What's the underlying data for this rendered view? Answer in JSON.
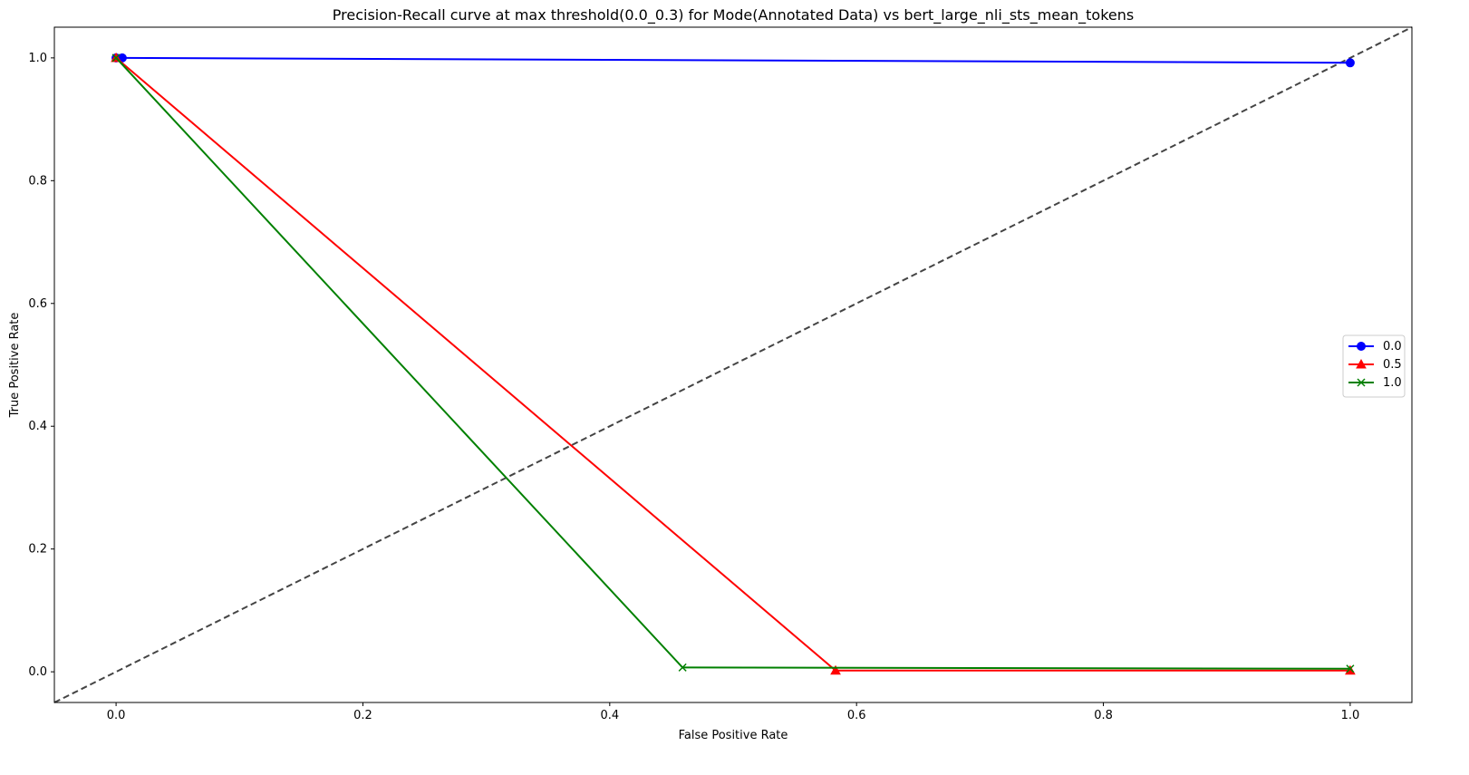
{
  "chart_data": {
    "type": "line",
    "title": "Precision-Recall curve at max threshold(0.0_0.3) for Mode(Annotated Data) vs bert_large_nli_sts_mean_tokens",
    "xlabel": "False Positive Rate",
    "ylabel": "True Positive Rate",
    "xlim": [
      -0.05,
      1.05
    ],
    "ylim": [
      -0.05,
      1.05
    ],
    "xticks": [
      "0.0",
      "0.2",
      "0.4",
      "0.6",
      "0.8",
      "1.0"
    ],
    "yticks": [
      "0.0",
      "0.2",
      "0.4",
      "0.6",
      "0.8",
      "1.0"
    ],
    "grid": false,
    "legend_position": "center-right",
    "series": [
      {
        "name": "0.0",
        "color": "#0000ff",
        "marker": "circle",
        "x": [
          0.0,
          0.005,
          1.0
        ],
        "y": [
          1.0,
          1.0,
          0.992
        ]
      },
      {
        "name": "0.5",
        "color": "#ff0000",
        "marker": "triangle",
        "x": [
          0.0,
          0.583,
          1.0
        ],
        "y": [
          1.0,
          0.002,
          0.002
        ]
      },
      {
        "name": "1.0",
        "color": "#008000",
        "marker": "x",
        "x": [
          0.0,
          0.459,
          1.0
        ],
        "y": [
          1.0,
          0.007,
          0.005
        ]
      }
    ],
    "reference_line": {
      "color": "#444444",
      "style": "dashed",
      "x": [
        -0.05,
        1.05
      ],
      "y": [
        -0.05,
        1.05
      ]
    }
  }
}
